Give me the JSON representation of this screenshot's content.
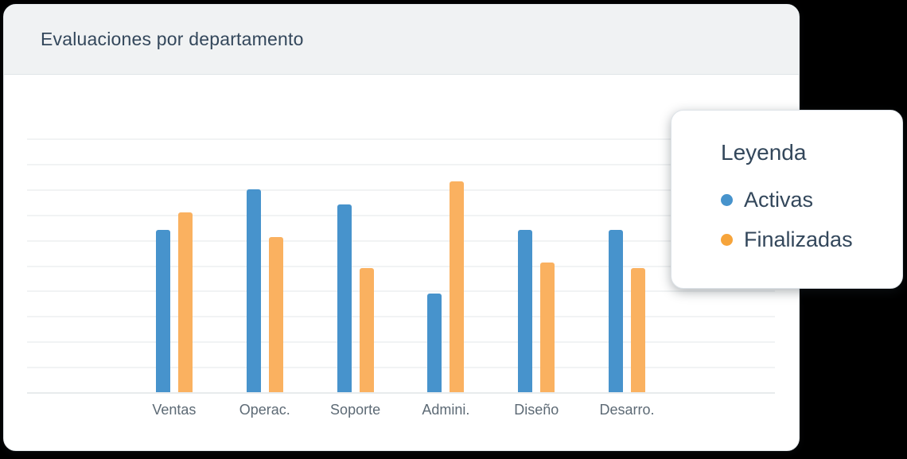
{
  "card": {
    "title": "Evaluaciones por departamento"
  },
  "legend": {
    "title": "Leyenda",
    "items": [
      {
        "label": "Activas",
        "color": "#4793CC"
      },
      {
        "label": "Finalizadas",
        "color": "#F6A43B"
      }
    ]
  },
  "chart_data": {
    "type": "bar",
    "title": "Evaluaciones por departamento",
    "categories": [
      "Ventas",
      "Operac.",
      "Soporte",
      "Admini.",
      "Diseño",
      "Desarro."
    ],
    "series": [
      {
        "name": "Activas",
        "color": "#4793CC",
        "values": [
          64,
          80,
          74,
          39,
          64,
          64
        ]
      },
      {
        "name": "Finalizadas",
        "color": "#FAB160",
        "values": [
          71,
          61,
          49,
          83,
          51,
          49
        ]
      }
    ],
    "ylim": [
      0,
      100
    ],
    "gridline_step": 10,
    "grid": true,
    "y_axis_labels_visible": false,
    "xlabel": "",
    "ylabel": "",
    "legend_position": "floating-right",
    "background": "#ffffff",
    "header_background": "#f0f2f3"
  }
}
